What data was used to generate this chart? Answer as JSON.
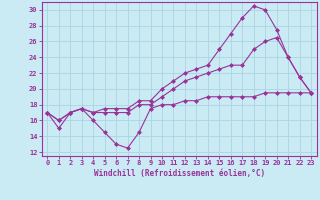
{
  "xlabel": "Windchill (Refroidissement éolien,°C)",
  "x": [
    0,
    1,
    2,
    3,
    4,
    5,
    6,
    7,
    8,
    9,
    10,
    11,
    12,
    13,
    14,
    15,
    16,
    17,
    18,
    19,
    20,
    21,
    22,
    23
  ],
  "line1": [
    17,
    15,
    17,
    17.5,
    16,
    14.5,
    13,
    12.5,
    14.5,
    17.5,
    18,
    18,
    18.5,
    18.5,
    19,
    19,
    19,
    19,
    19,
    19.5,
    19.5,
    19.5,
    19.5,
    19.5
  ],
  "line2": [
    17,
    16,
    17,
    17.5,
    17,
    17,
    17,
    17,
    18,
    18,
    19,
    20,
    21,
    21.5,
    22,
    22.5,
    23,
    23,
    25,
    26,
    26.5,
    24,
    21.5,
    19.5
  ],
  "line3": [
    17,
    16,
    17,
    17.5,
    17,
    17.5,
    17.5,
    17.5,
    18.5,
    18.5,
    20,
    21,
    22,
    22.5,
    23,
    25,
    27,
    29,
    30.5,
    30,
    27.5,
    24,
    21.5,
    19.5
  ],
  "bg_color": "#caeaf4",
  "grid_color": "#aad4e4",
  "line_color": "#993399",
  "marker": "D",
  "marker_size": 2,
  "linewidth": 0.8,
  "ylim": [
    11.5,
    31
  ],
  "yticks": [
    12,
    14,
    16,
    18,
    20,
    22,
    24,
    26,
    28,
    30
  ],
  "xlim": [
    -0.5,
    23.5
  ],
  "tick_fontsize": 5.0,
  "xlabel_fontsize": 5.5
}
